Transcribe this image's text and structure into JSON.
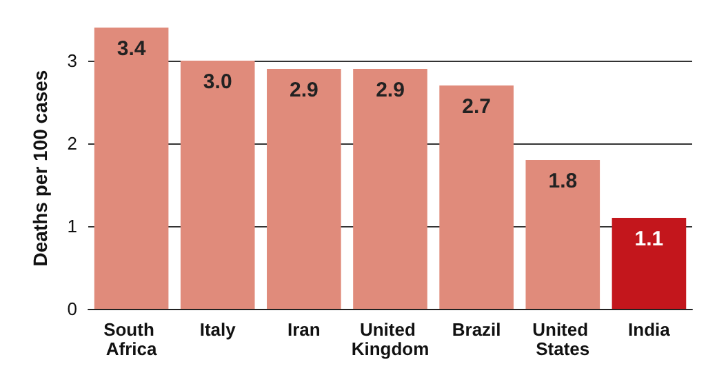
{
  "chart_data": {
    "type": "bar",
    "ylabel": "Deaths per 100 cases",
    "categories": [
      "South Africa",
      "Italy",
      "Iran",
      "United Kingdom",
      "Brazil",
      "United States",
      "India"
    ],
    "values": [
      3.4,
      3.0,
      2.9,
      2.9,
      2.7,
      1.8,
      1.1
    ],
    "value_labels": [
      "3.4",
      "3.0",
      "2.9",
      "2.9",
      "2.7",
      "1.8",
      "1.1"
    ],
    "colors": [
      "#e08b7b",
      "#e08b7b",
      "#e08b7b",
      "#e08b7b",
      "#e08b7b",
      "#e08b7b",
      "#c3161c"
    ],
    "ylim": [
      0,
      3.4
    ],
    "yticks": [
      0,
      1,
      2,
      3
    ],
    "grid": "y"
  }
}
